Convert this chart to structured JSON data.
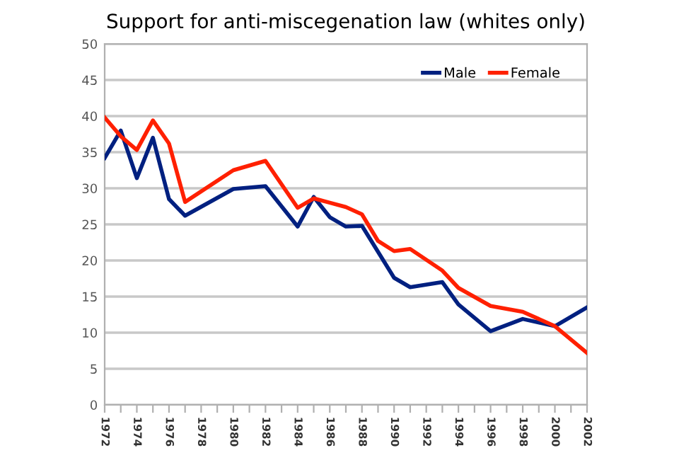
{
  "chart_data": {
    "type": "line",
    "title": "Support for anti-miscegenation law (whites only)",
    "series": [
      {
        "name": "Male",
        "color": "#002080",
        "x": [
          1972,
          1973,
          1974,
          1975,
          1976,
          1977,
          1980,
          1982,
          1984,
          1985,
          1986,
          1987,
          1988,
          1989,
          1990,
          1991,
          1993,
          1994,
          1996,
          1998,
          2000,
          2002
        ],
        "values": [
          34.2,
          38,
          31.4,
          37,
          28.5,
          26.2,
          29.9,
          30.3,
          24.7,
          28.8,
          26,
          24.7,
          24.8,
          21.2,
          17.6,
          16.3,
          17,
          13.9,
          10.2,
          11.9,
          10.9,
          13.5
        ]
      },
      {
        "name": "Female",
        "color": "#ff2000",
        "x": [
          1972,
          1973,
          1974,
          1975,
          1976,
          1977,
          1980,
          1982,
          1984,
          1985,
          1986,
          1987,
          1988,
          1989,
          1990,
          1991,
          1993,
          1994,
          1996,
          1998,
          2000,
          2002
        ],
        "values": [
          39.8,
          37.2,
          35.3,
          39.4,
          36.2,
          28.1,
          32.5,
          33.8,
          27.3,
          28.6,
          28,
          27.4,
          26.4,
          22.7,
          21.3,
          21.6,
          18.6,
          16.2,
          13.7,
          12.9,
          10.9,
          7.2
        ]
      }
    ],
    "xlim": [
      1972,
      2002
    ],
    "xticks": [
      1972,
      {
        "value": 1973,
        "label": null
      },
      1974,
      {
        "value": 1975,
        "label": null
      },
      1976,
      {
        "value": 1977,
        "label": null
      },
      1978,
      {
        "value": 1979,
        "label": null
      },
      1980,
      {
        "value": 1981,
        "label": null
      },
      1982,
      {
        "value": 1983,
        "label": null
      },
      1984,
      {
        "value": 1985,
        "label": null
      },
      1986,
      {
        "value": 1987,
        "label": null
      },
      1988,
      {
        "value": 1989,
        "label": null
      },
      1990,
      {
        "value": 1991,
        "label": null
      },
      1992,
      {
        "value": 1993,
        "label": null
      },
      1994,
      {
        "value": 1995,
        "label": null
      },
      1996,
      {
        "value": 1997,
        "label": null
      },
      1998,
      {
        "value": 1999,
        "label": null
      },
      2000,
      {
        "value": 2001,
        "label": null
      },
      2002
    ],
    "ylim": [
      0,
      50
    ],
    "yticks": [
      0,
      5,
      10,
      15,
      20,
      25,
      30,
      35,
      40,
      45,
      50
    ],
    "grid": "y",
    "legend": "top right",
    "marker": "none",
    "line_style": "solid"
  }
}
